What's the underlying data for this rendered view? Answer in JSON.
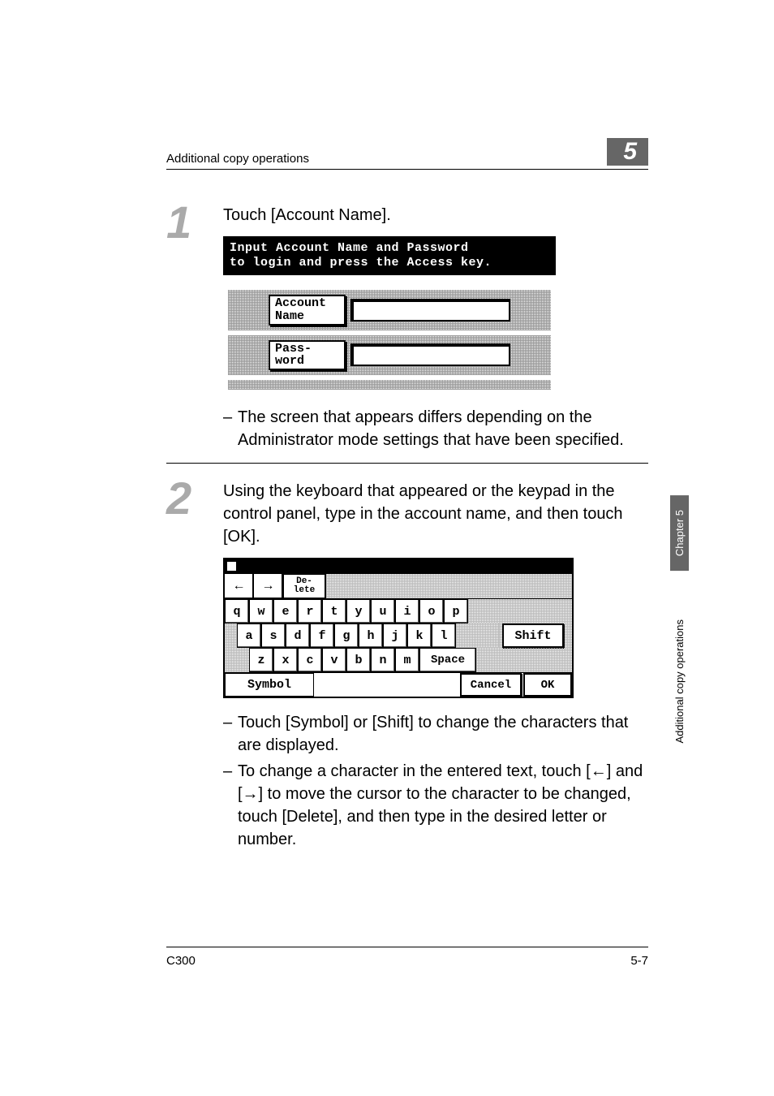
{
  "header": {
    "title": "Additional copy operations",
    "chapter": "5"
  },
  "side_tabs": {
    "dark": "Chapter 5",
    "light": "Additional copy operations"
  },
  "steps": [
    {
      "number": "1",
      "text": "Touch [Account Name].",
      "lcd": {
        "header_line1": "Input Account Name and Password",
        "header_line2": "to login and press the Access key.",
        "buttons": [
          {
            "label_line1": "Account",
            "label_line2": "Name"
          },
          {
            "label_line1": "Pass-",
            "label_line2": "word"
          }
        ]
      },
      "sub_items": [
        "The screen that appears differs depending on the Administrator mode settings that have been specified."
      ]
    },
    {
      "number": "2",
      "text": "Using the keyboard that appeared or the keypad in the control panel, type in the account name, and then touch [OK].",
      "keyboard": {
        "nav_left": "←",
        "nav_right": "→",
        "delete": "De-\nlete",
        "row1": [
          "q",
          "w",
          "e",
          "r",
          "t",
          "y",
          "u",
          "i",
          "o",
          "p"
        ],
        "row2": [
          "a",
          "s",
          "d",
          "f",
          "g",
          "h",
          "j",
          "k",
          "l"
        ],
        "row3": [
          "z",
          "x",
          "c",
          "v",
          "b",
          "n",
          "m"
        ],
        "space": "Space",
        "shift": "Shift",
        "symbol": "Symbol",
        "cancel": "Cancel",
        "ok": "OK"
      },
      "sub_items": [
        "Touch [Symbol] or [Shift] to change the characters that are displayed.",
        "To change a character in the entered text, touch [←] and [→] to move the cursor to the character to be changed, touch [Delete], and then type in the desired letter or number."
      ]
    }
  ],
  "footer": {
    "left": "C300",
    "right": "5-7"
  },
  "colors": {
    "badge_bg": "#666666",
    "step_num": "#aaaaaa",
    "text": "#000000",
    "dither": "#999999"
  }
}
